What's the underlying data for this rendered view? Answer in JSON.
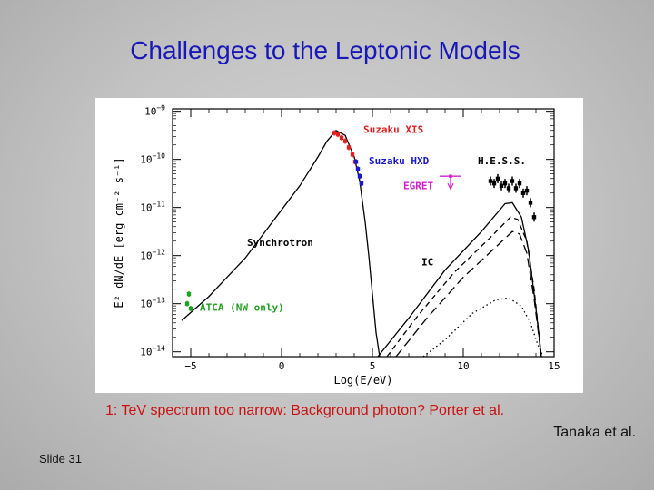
{
  "slide": {
    "title": "Challenges to the Leptonic Models",
    "caption": "1: TeV spectrum too narrow: Background photon? Porter et al.",
    "credit": "Tanaka et al.",
    "slide_number": "Slide 31"
  },
  "chart_data": {
    "type": "line",
    "title": "",
    "xlabel": "Log(E/eV)",
    "ylabel": "E² dN/dE [erg cm⁻² s⁻¹]",
    "xlim": [
      -6,
      15
    ],
    "ylog": true,
    "ylim_exp": [
      -14.1,
      -8.95
    ],
    "x_ticks": [
      -5,
      0,
      5,
      10,
      15
    ],
    "x_tick_labels": [
      "−5",
      "0",
      "5",
      "10",
      "15"
    ],
    "y_ticks": [
      -14,
      -13,
      -12,
      -11,
      -10,
      -9
    ],
    "y_tick_label_base": "10",
    "y_tick_label_exps": [
      "−14",
      "−13",
      "−12",
      "−11",
      "−10",
      "−9"
    ],
    "grid": false,
    "series": [
      {
        "name": "Synchrotron",
        "color": "#000000",
        "style": "solid",
        "x": [
          -5.5,
          -4,
          -2,
          0,
          1,
          2,
          2.5,
          3,
          3.5,
          4,
          4.3,
          4.6,
          4.8,
          5.0,
          5.2,
          5.4
        ],
        "log_y": [
          -13.35,
          -12.85,
          -12.05,
          -11.05,
          -10.55,
          -9.95,
          -9.62,
          -9.4,
          -9.5,
          -9.95,
          -10.45,
          -11.3,
          -12.0,
          -12.8,
          -13.6,
          -14.1
        ]
      },
      {
        "name": "IC",
        "color": "#000000",
        "style": "solid",
        "x": [
          5.3,
          7,
          9,
          11,
          12.3,
          12.7,
          13.2,
          13.6,
          14.0,
          14.3
        ],
        "log_y": [
          -14.1,
          -13.3,
          -12.3,
          -11.5,
          -10.92,
          -10.9,
          -11.2,
          -11.9,
          -13.1,
          -14.1
        ]
      },
      {
        "name": "IC",
        "color": "#000000",
        "style": "dashed",
        "x": [
          5.8,
          7.5,
          9.5,
          11.5,
          12.6,
          13.0,
          13.5,
          13.9,
          14.3
        ],
        "log_y": [
          -14.1,
          -13.25,
          -12.35,
          -11.62,
          -11.2,
          -11.25,
          -11.7,
          -12.7,
          -14.1
        ]
      },
      {
        "name": "IC",
        "color": "#000000",
        "style": "longdash",
        "x": [
          6.3,
          8,
          10,
          11.8,
          12.7,
          13.1,
          13.5,
          13.9,
          14.3
        ],
        "log_y": [
          -14.1,
          -13.3,
          -12.45,
          -11.82,
          -11.5,
          -11.55,
          -11.95,
          -12.9,
          -14.1
        ]
      },
      {
        "name": "IC",
        "color": "#000000",
        "style": "dotted",
        "x": [
          7.8,
          9,
          10.5,
          11.8,
          12.5,
          13.2,
          13.7,
          14.1,
          14.4
        ],
        "log_y": [
          -14.1,
          -13.75,
          -13.2,
          -12.92,
          -12.88,
          -13.05,
          -13.4,
          -13.85,
          -14.1
        ]
      },
      {
        "name": "Suzaku XIS",
        "color": "#e02020",
        "style": "data",
        "x": [
          2.9,
          3.1,
          3.3,
          3.5,
          3.7,
          3.9,
          4.05
        ],
        "log_y": [
          -9.45,
          -9.48,
          -9.55,
          -9.62,
          -9.75,
          -9.9,
          -10.05
        ]
      },
      {
        "name": "Suzaku HXD",
        "color": "#1a1acc",
        "style": "data",
        "x": [
          4.1,
          4.2,
          4.3,
          4.4
        ],
        "log_y": [
          -10.05,
          -10.2,
          -10.35,
          -10.5
        ]
      },
      {
        "name": "H.E.S.S.",
        "color": "#000000",
        "style": "data",
        "x": [
          11.5,
          11.7,
          11.9,
          12.1,
          12.3,
          12.5,
          12.7,
          12.9,
          13.1,
          13.3,
          13.5,
          13.7,
          13.9
        ],
        "log_y": [
          -10.45,
          -10.5,
          -10.4,
          -10.55,
          -10.5,
          -10.6,
          -10.45,
          -10.6,
          -10.5,
          -10.7,
          -10.65,
          -10.9,
          -11.2
        ]
      },
      {
        "name": "EGRET",
        "color": "#d020d0",
        "style": "data",
        "x": [
          9.3
        ],
        "log_y": [
          -10.35
        ]
      },
      {
        "name": "ATCA (NW only)",
        "color": "#20a020",
        "style": "data",
        "x": [
          -5.2,
          -5.1,
          -5.0
        ],
        "log_y": [
          -13.0,
          -12.8,
          -13.1
        ]
      }
    ],
    "annotations": [
      {
        "text": "Suzaku XIS",
        "x": 4.5,
        "log_y": -9.45,
        "color": "#e02020"
      },
      {
        "text": "Suzaku HXD",
        "x": 4.8,
        "log_y": -10.1,
        "color": "#1a1acc"
      },
      {
        "text": "H.E.S.S.",
        "x": 10.8,
        "log_y": -10.1,
        "color": "#000000"
      },
      {
        "text": "EGRET",
        "x": 6.7,
        "log_y": -10.62,
        "color": "#d020d0"
      },
      {
        "text": "Synchrotron",
        "x": -1.9,
        "log_y": -11.8,
        "color": "#000000"
      },
      {
        "text": "IC",
        "x": 7.7,
        "log_y": -12.2,
        "color": "#000000"
      },
      {
        "text": "ATCA (NW only)",
        "x": -4.5,
        "log_y": -13.15,
        "color": "#20a020"
      }
    ]
  }
}
